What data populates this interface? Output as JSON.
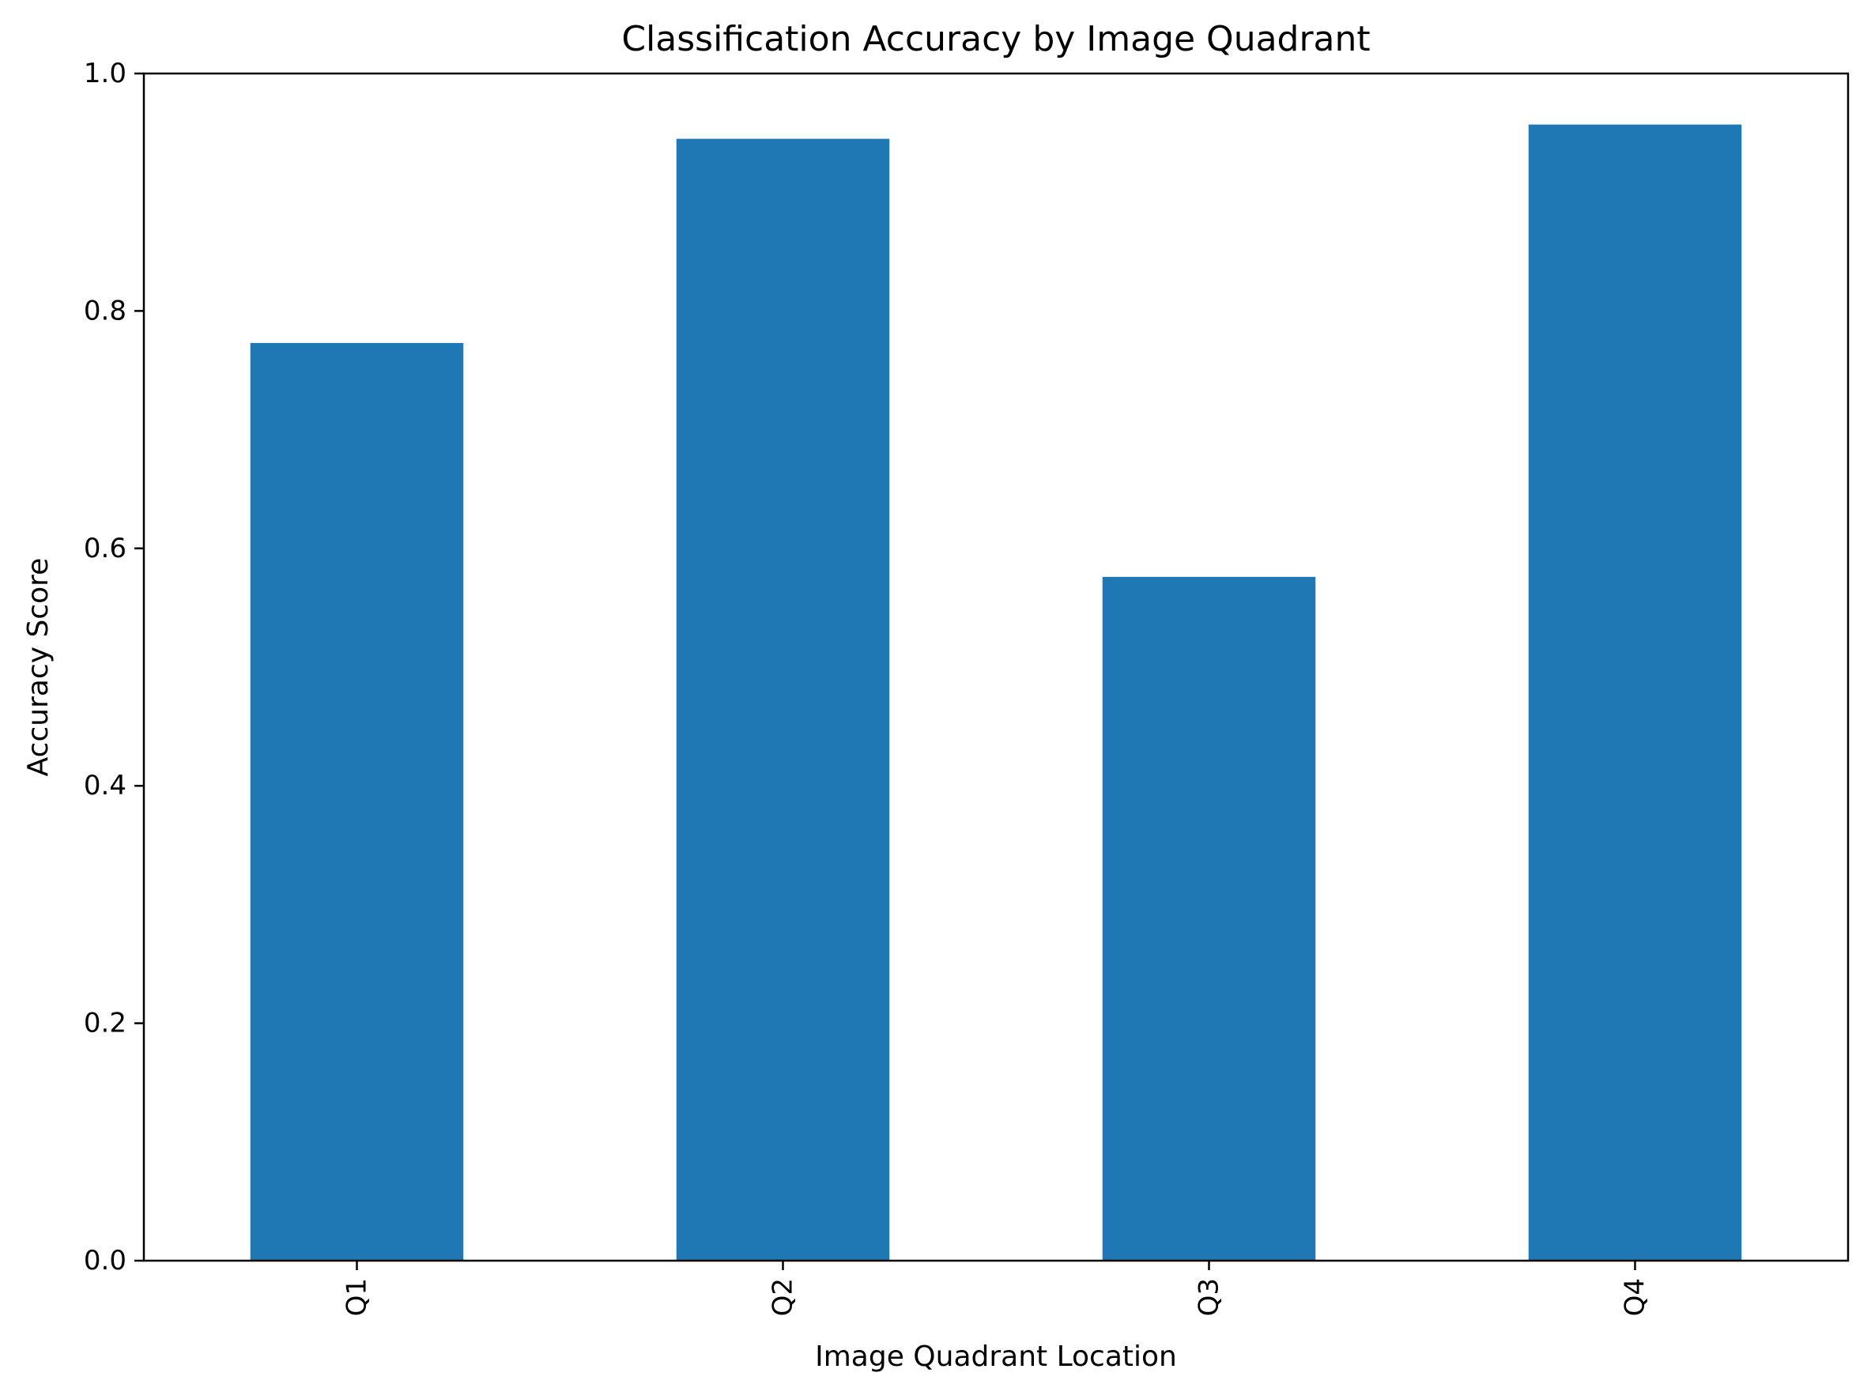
{
  "chart_data": {
    "type": "bar",
    "title": "Classification Accuracy by Image Quadrant",
    "xlabel": "Image Quadrant Location",
    "ylabel": "Accuracy Score",
    "categories": [
      "Q1",
      "Q2",
      "Q3",
      "Q4"
    ],
    "values": [
      0.773,
      0.945,
      0.576,
      0.957
    ],
    "ylim": [
      0,
      1.0
    ],
    "yticks": [
      "0.0",
      "0.2",
      "0.4",
      "0.6",
      "0.8",
      "1.0"
    ],
    "grid": false,
    "legend": "none",
    "bar_color": "#1f77b4"
  }
}
